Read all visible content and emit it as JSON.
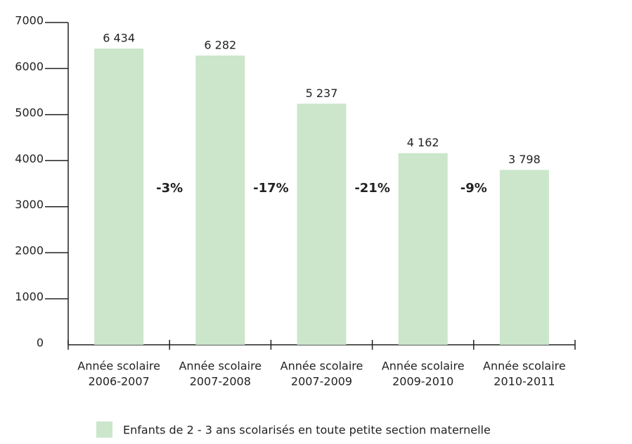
{
  "chart_data": {
    "type": "bar",
    "categories": [
      [
        "Année scolaire",
        "2006-2007"
      ],
      [
        "Année scolaire",
        "2007-2008"
      ],
      [
        "Année scolaire",
        "2007-2009"
      ],
      [
        "Année scolaire",
        "2009-2010"
      ],
      [
        "Année scolaire",
        "2010-2011"
      ]
    ],
    "series": [
      {
        "name": "Enfants de 2 - 3 ans scolarisés en toute petite section maternelle",
        "color": "#cbe6cb",
        "values": [
          6434,
          6282,
          5237,
          4162,
          3798
        ],
        "value_labels": [
          "6 434",
          "6 282",
          "5 237",
          "4 162",
          "3 798"
        ]
      }
    ],
    "annotations": [
      "-3%",
      "-17%",
      "-21%",
      "-9%"
    ],
    "ylim": [
      0,
      7000
    ],
    "yticks": [
      0,
      1000,
      2000,
      3000,
      4000,
      5000,
      6000,
      7000
    ],
    "legend": "bottom"
  }
}
